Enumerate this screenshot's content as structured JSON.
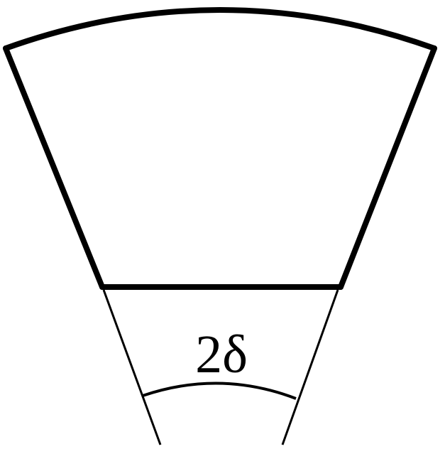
{
  "diagram": {
    "angle_label": "2δ",
    "colors": {
      "stroke": "#000000",
      "background": "#ffffff"
    }
  }
}
